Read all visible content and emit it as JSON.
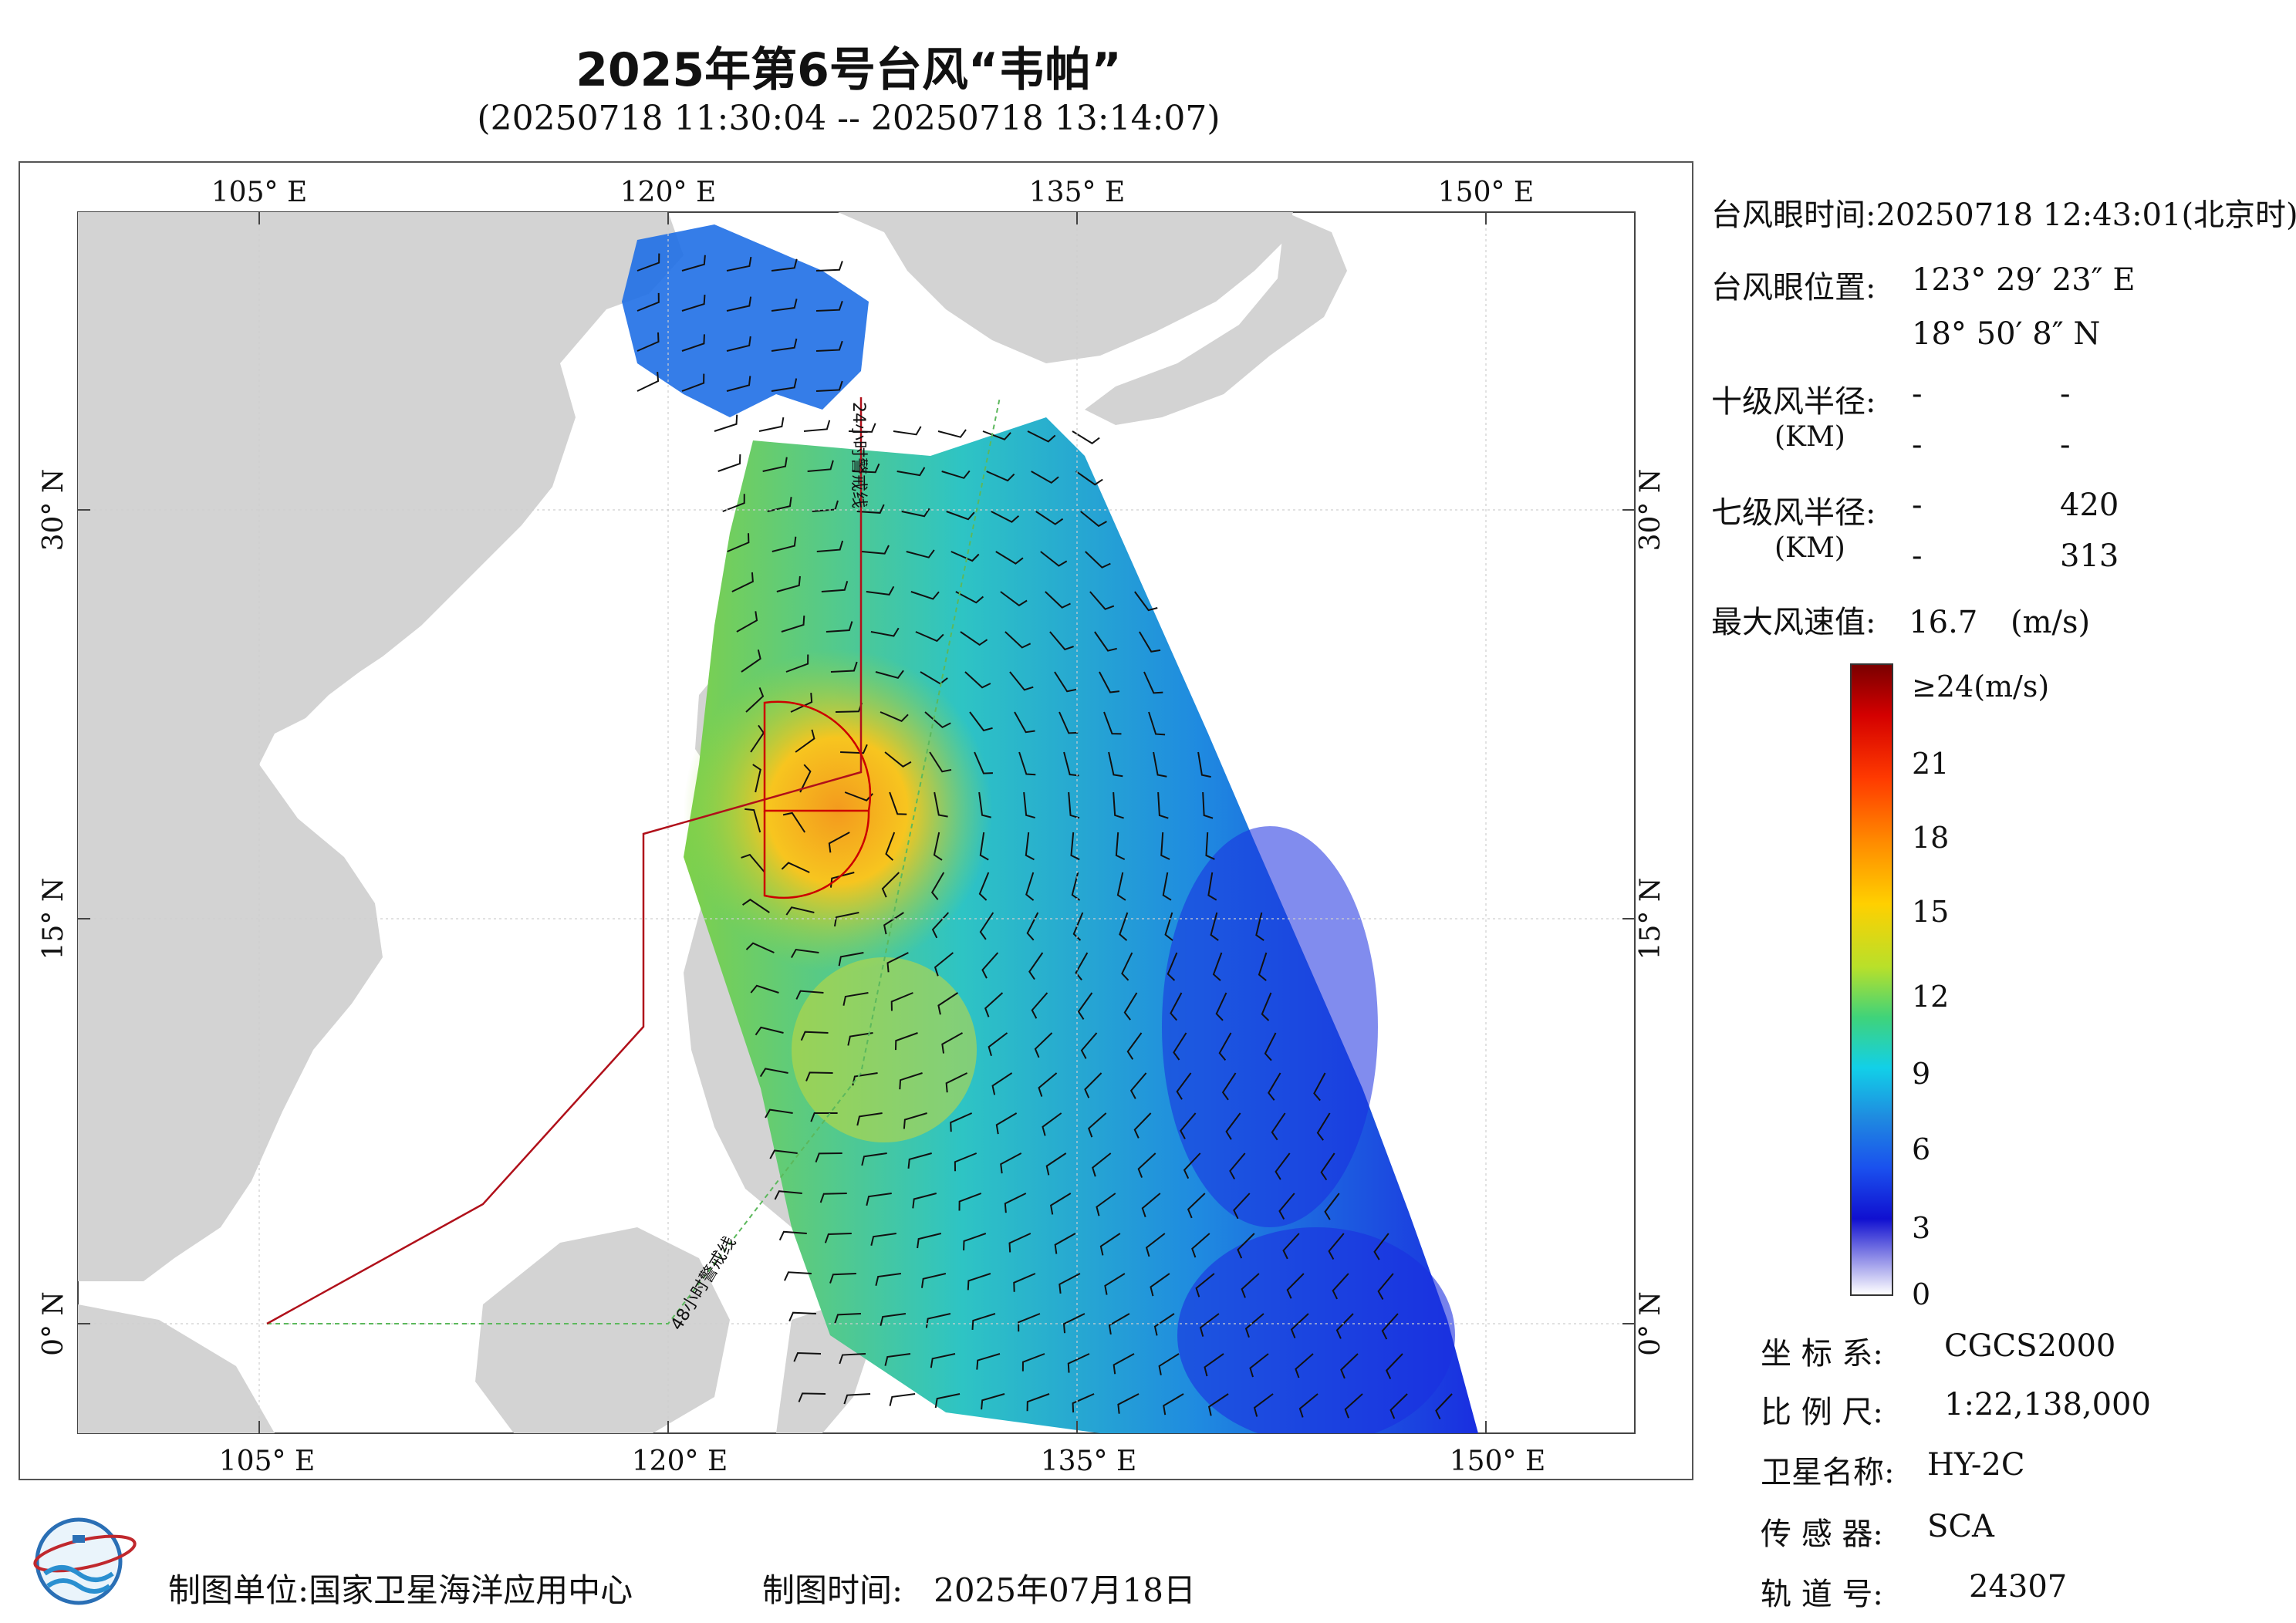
{
  "header": {
    "title": "2025年第6号台风“韦帕”",
    "subtitle": "(20250718 11:30:04 -- 20250718 13:14:07)"
  },
  "map": {
    "lon_labels": [
      "105° E",
      "120° E",
      "135° E",
      "150° E"
    ],
    "lat_labels": [
      "30° N",
      "15° N",
      "0° N"
    ],
    "warning_line_24h": "24小时警戒线",
    "warning_line_48h": "48小时警戒线",
    "colors": {
      "land": "#d3d3d3",
      "sea": "#ffffff",
      "warning_24h": "#b0101a",
      "warning_48h": "#5cb85c",
      "typhoon_circle": "#cc0000"
    }
  },
  "info": {
    "eye_time_label": "台风眼时间:",
    "eye_time_value": "20250718 12:43:01(北京时)",
    "eye_position_label": "台风眼位置:",
    "eye_lon": "123° 29′ 23″ E",
    "eye_lat": "18° 50′ 8″ N",
    "r10_label": "十级风半径:",
    "r10_unit": "(KM)",
    "r10_values": [
      "-",
      "-",
      "-",
      "-"
    ],
    "r7_label": "七级风半径:",
    "r7_unit": "(KM)",
    "r7_values": [
      "-",
      "420",
      "-",
      "313"
    ],
    "max_wind_label": "最大风速值:",
    "max_wind_value": "16.7",
    "max_wind_unit": "(m/s)"
  },
  "colorbar": {
    "top_label": "≥24(m/s)",
    "labels": [
      "21",
      "18",
      "15",
      "12",
      "9",
      "6",
      "3",
      "0"
    ]
  },
  "meta": {
    "crs_label": "坐 标 系:",
    "crs_value": "CGCS2000",
    "scale_label": "比 例 尺:",
    "scale_value": "1:22,138,000",
    "satellite_label": "卫星名称:",
    "satellite_value": "HY-2C",
    "sensor_label": "传 感 器:",
    "sensor_value": "SCA",
    "orbit_label": "轨 道 号:",
    "orbit_value": "24307"
  },
  "footer": {
    "unit_label": "制图单位:",
    "unit_value": "国家卫星海洋应用中心",
    "time_label": "制图时间:",
    "time_value": "2025年07月18日"
  }
}
